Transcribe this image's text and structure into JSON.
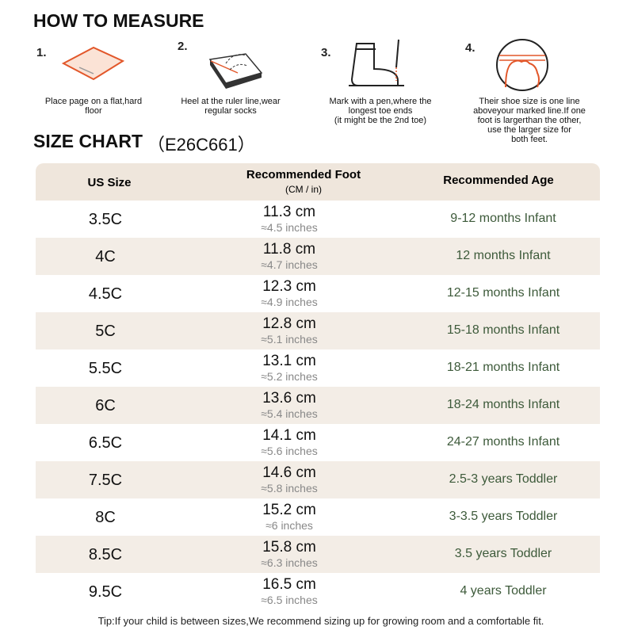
{
  "measure": {
    "title": "HOW TO MEASURE",
    "steps": [
      {
        "number": "1.",
        "lines": [
          "Place page on a flat,hard",
          "floor"
        ]
      },
      {
        "number": "2.",
        "lines": [
          "Heel at the ruler line,wear",
          "regular socks"
        ]
      },
      {
        "number": "3.",
        "lines": [
          "Mark with a pen,where the",
          "longest toe ends",
          "(it might be the 2nd toe)"
        ]
      },
      {
        "number": "4.",
        "lines": [
          "Their shoe size is one line",
          "aboveyour marked line.If one",
          "foot is largerthan the other,",
          "use the larger size for",
          "both feet."
        ]
      }
    ]
  },
  "size_chart": {
    "title": "SIZE CHART",
    "code": "（E26C661）",
    "headers": {
      "size": "US Size",
      "foot": "Recommended Foot",
      "foot_unit": "(CM / in)",
      "age": "Recommended Age"
    },
    "rows": [
      [
        "3.5C",
        "11.3 cm",
        "≈4.5 inches",
        "9-12 months Infant"
      ],
      [
        "4C",
        "11.8 cm",
        "≈4.7 inches",
        "12 months Infant"
      ],
      [
        "4.5C",
        "12.3 cm",
        "≈4.9 inches",
        "12-15 months Infant"
      ],
      [
        "5C",
        "12.8 cm",
        "≈5.1 inches",
        "15-18 months Infant"
      ],
      [
        "5.5C",
        "13.1 cm",
        "≈5.2 inches",
        "18-21 months Infant"
      ],
      [
        "6C",
        "13.6 cm",
        "≈5.4 inches",
        "18-24 months Infant"
      ],
      [
        "6.5C",
        "14.1 cm",
        "≈5.6 inches",
        "24-27 months Infant"
      ],
      [
        "7.5C",
        "14.6 cm",
        "≈5.8 inches",
        "2.5-3 years Toddler"
      ],
      [
        "8C",
        "15.2 cm",
        "≈6 inches",
        "3-3.5 years Toddler"
      ],
      [
        "8.5C",
        "15.8 cm",
        "≈6.3 inches",
        "3.5 years Toddler"
      ],
      [
        "9.5C",
        "16.5 cm",
        "≈6.5 inches",
        "4 years Toddler"
      ]
    ]
  },
  "tip": "Tip:If your child is between sizes,We recommend sizing up for growing room and a comfortable fit."
}
